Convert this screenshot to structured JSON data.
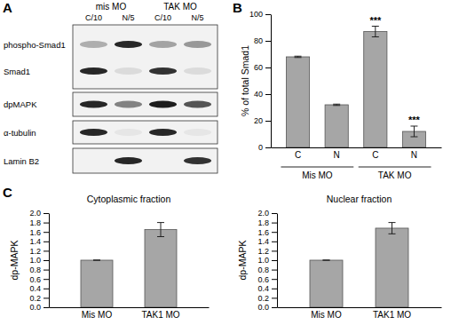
{
  "panel_labels": [
    "A",
    "B",
    "C"
  ],
  "blot": {
    "groups": [
      "mis MO",
      "TAK MO"
    ],
    "columns": [
      "C/10",
      "N/5",
      "C/10",
      "N/5"
    ],
    "rows": [
      {
        "label": "phospho-Smad1",
        "intensity": [
          0.3,
          0.9,
          0.35,
          0.4
        ]
      },
      {
        "label": "Smad1",
        "intensity": [
          0.9,
          0.1,
          0.85,
          0.1
        ]
      },
      {
        "label": "dpMAPK",
        "intensity": [
          0.9,
          0.5,
          0.95,
          0.7
        ]
      },
      {
        "label": "α-tubulin",
        "intensity": [
          0.9,
          0.05,
          0.9,
          0.05
        ]
      },
      {
        "label": "Lamin B2",
        "intensity": [
          0,
          0.9,
          0,
          0.85
        ]
      }
    ]
  },
  "chart_data": [
    {
      "type": "bar",
      "y_label": "% of total Smad1",
      "categories": [
        "C",
        "N",
        "C",
        "N"
      ],
      "group_labels": [
        "Mis MO",
        "TAK MO"
      ],
      "values": [
        68,
        32,
        87,
        12
      ],
      "errors": [
        0.5,
        0.5,
        4,
        4
      ],
      "annotations": [
        {
          "x": 2,
          "text": "***"
        },
        {
          "x": 3,
          "text": "***"
        }
      ],
      "color": "#a6a6a6",
      "ylim": [
        0,
        100
      ],
      "yticks": [
        0,
        20,
        40,
        60,
        80,
        100
      ],
      "grid": false
    },
    {
      "type": "bar",
      "title": "Cytoplasmic fraction",
      "y_label": "dp-MAPK",
      "categories": [
        "Mis MO",
        "TAK1 MO"
      ],
      "values": [
        1.0,
        1.65
      ],
      "errors": [
        0,
        0.15
      ],
      "color": "#a6a6a6",
      "ylim": [
        0,
        2
      ],
      "yticks": [
        {
          "value": 0,
          "label": "0.0"
        },
        0.2,
        0.4,
        0.6,
        0.8,
        {
          "value": 1,
          "label": "1.0"
        },
        1.2,
        1.4,
        1.6,
        1.8,
        {
          "value": 2,
          "label": "2.0"
        }
      ],
      "grid": false
    },
    {
      "type": "bar",
      "title": "Nuclear fraction",
      "y_label": "dp-MAPK",
      "categories": [
        "Mis MO",
        "TAK1 MO"
      ],
      "values": [
        1.0,
        1.68
      ],
      "errors": [
        0,
        0.12
      ],
      "color": "#a6a6a6",
      "ylim": [
        0,
        2
      ],
      "yticks": [
        {
          "value": 0,
          "label": "0.0"
        },
        0.2,
        0.4,
        0.6,
        0.8,
        {
          "value": 1,
          "label": "1.0"
        },
        1.2,
        1.4,
        1.6,
        1.8,
        {
          "value": 2,
          "label": "2.0"
        }
      ],
      "grid": false
    }
  ]
}
